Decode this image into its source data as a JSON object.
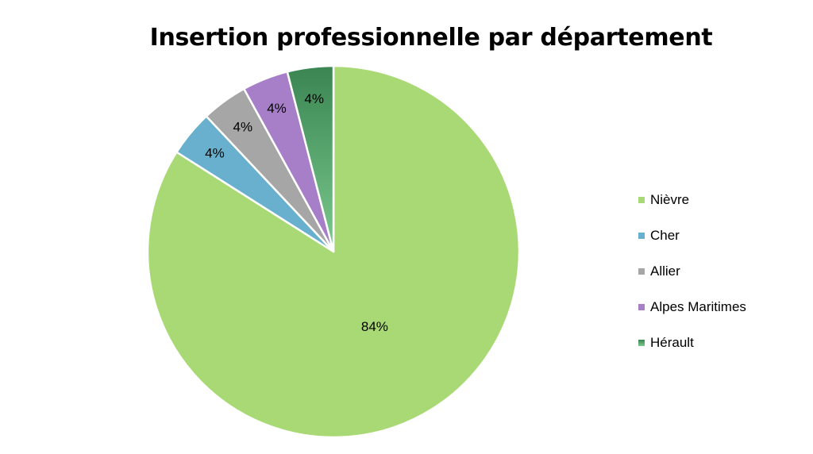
{
  "chart_data": {
    "type": "pie",
    "title": "Insertion professionnelle par département",
    "categories": [
      "Nièvre",
      "Cher",
      "Allier",
      "Alpes Maritimes",
      "Hérault"
    ],
    "values": [
      84,
      4,
      4,
      4,
      4
    ],
    "value_labels": [
      "84%",
      "4%",
      "4%",
      "4%",
      "4%"
    ],
    "colors": [
      "#a9d974",
      "#68b0cd",
      "#a6a6a6",
      "#a77fc9",
      "#3d8a57"
    ],
    "legend_position": "right"
  }
}
